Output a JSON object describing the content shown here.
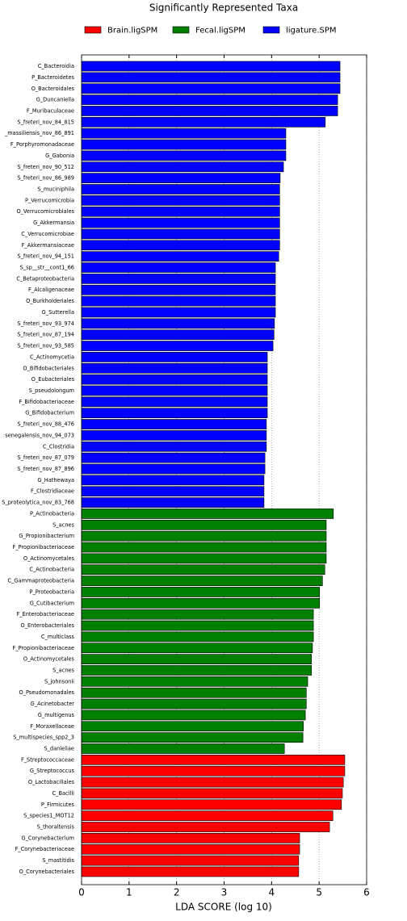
{
  "chart_data": {
    "type": "barh",
    "title": "Significantly Represented Taxa",
    "x_label": "LDA SCORE (log 10)",
    "xlim": [
      0,
      6
    ],
    "xticks": [
      0,
      1,
      2,
      3,
      4,
      5,
      6
    ],
    "grid": true,
    "legend": "top",
    "series": [
      {
        "name": "Brain.ligSPM",
        "color": "#ff0000",
        "categories": [
          "F_Streptococcaceae",
          "G_Streptococcus",
          "O_Lactobacillales",
          "C_Bacilli",
          "P_Firmicutes",
          "S_species1_MOT12",
          "S_thoraltensis",
          "G_Corynebacterium",
          "F_Corynebacteriaceae",
          "S_mastitidis",
          "O_Corynebacteriales"
        ],
        "values": [
          5.54,
          5.54,
          5.51,
          5.49,
          5.47,
          5.29,
          5.22,
          4.59,
          4.59,
          4.57,
          4.57
        ]
      },
      {
        "name": "Fecal.ligSPM",
        "color": "#008000",
        "categories": [
          "P_Actinobacteria",
          "S_acnes",
          "G_Propionibacterium",
          "F_Propionibacteriaceae",
          "O_Actinomycetales",
          "C_Actinobacteria",
          "C_Gammaproteobacteria",
          "P_Proteobacteria",
          "G_Cutibacterium",
          "F_Enterobacteriaceae",
          "O_Enterobacteriales",
          "C_multiclass",
          "F_Propionibacteriaceae",
          "O_Actinomycetales",
          "S_acnes",
          "S_johnsonii",
          "O_Pseudomonadales",
          "G_Acinetobacter",
          "G_multigenus",
          "F_Moraxellaceae",
          "S_multispecies_spp2_3",
          "S_danieliae"
        ],
        "values": [
          5.3,
          5.15,
          5.15,
          5.15,
          5.15,
          5.12,
          5.07,
          5.01,
          5.01,
          4.88,
          4.88,
          4.88,
          4.86,
          4.84,
          4.84,
          4.76,
          4.73,
          4.73,
          4.71,
          4.67,
          4.66,
          4.27
        ]
      },
      {
        "name": "ligature.SPM",
        "color": "#0000ff",
        "categories": [
          "C_Bacteroidia",
          "P_Bacteroidetes",
          "O_Bacteroidales",
          "G_Duncaniella",
          "F_Muribaculaceae",
          "S_freteri_nov_84_815",
          "_massiliensis_nov_86_891",
          "F_Porphyromonadaceae",
          "G_Gabonia",
          "S_freteri_nov_90_512",
          "S_freteri_nov_86_989",
          "S_muciniphila",
          "P_Verrucomicrobia",
          "O_Verrucomicrobiales",
          "G_Akkermansia",
          "C_Verrucomicrobiae",
          "F_Akkermansiaceae",
          "S_freteri_nov_94_151",
          "S_sp__str__cont1_66",
          "C_Betaproteobacteria",
          "F_Alcaligenaceae",
          "O_Burkholderiales",
          "G_Sutterella",
          "S_freteri_nov_93_974",
          "S_freteri_nov_87_194",
          "S_freteri_nov_93_585",
          "C_Actinomycetia",
          "O_Bifidobacteriales",
          "O_Eubacteriales",
          "S_pseudolongum",
          "F_Bifidobacteriaceae",
          "G_Bifidobacterium",
          "S_freteri_nov_88_476",
          "senegalensis_nov_94_073",
          "C_Clostridia",
          "S_freteri_nov_87_079",
          "S_freteri_nov_87_896",
          "G_Hathewaya",
          "F_Clostridiaceae",
          "S_proteolytica_nov_83_768"
        ],
        "values": [
          5.44,
          5.44,
          5.44,
          5.39,
          5.39,
          5.13,
          4.3,
          4.3,
          4.3,
          4.25,
          4.18,
          4.17,
          4.17,
          4.17,
          4.17,
          4.17,
          4.17,
          4.15,
          4.08,
          4.08,
          4.08,
          4.08,
          4.08,
          4.06,
          4.05,
          4.03,
          3.91,
          3.91,
          3.91,
          3.91,
          3.91,
          3.91,
          3.89,
          3.89,
          3.89,
          3.86,
          3.86,
          3.84,
          3.84,
          3.84
        ]
      }
    ]
  }
}
